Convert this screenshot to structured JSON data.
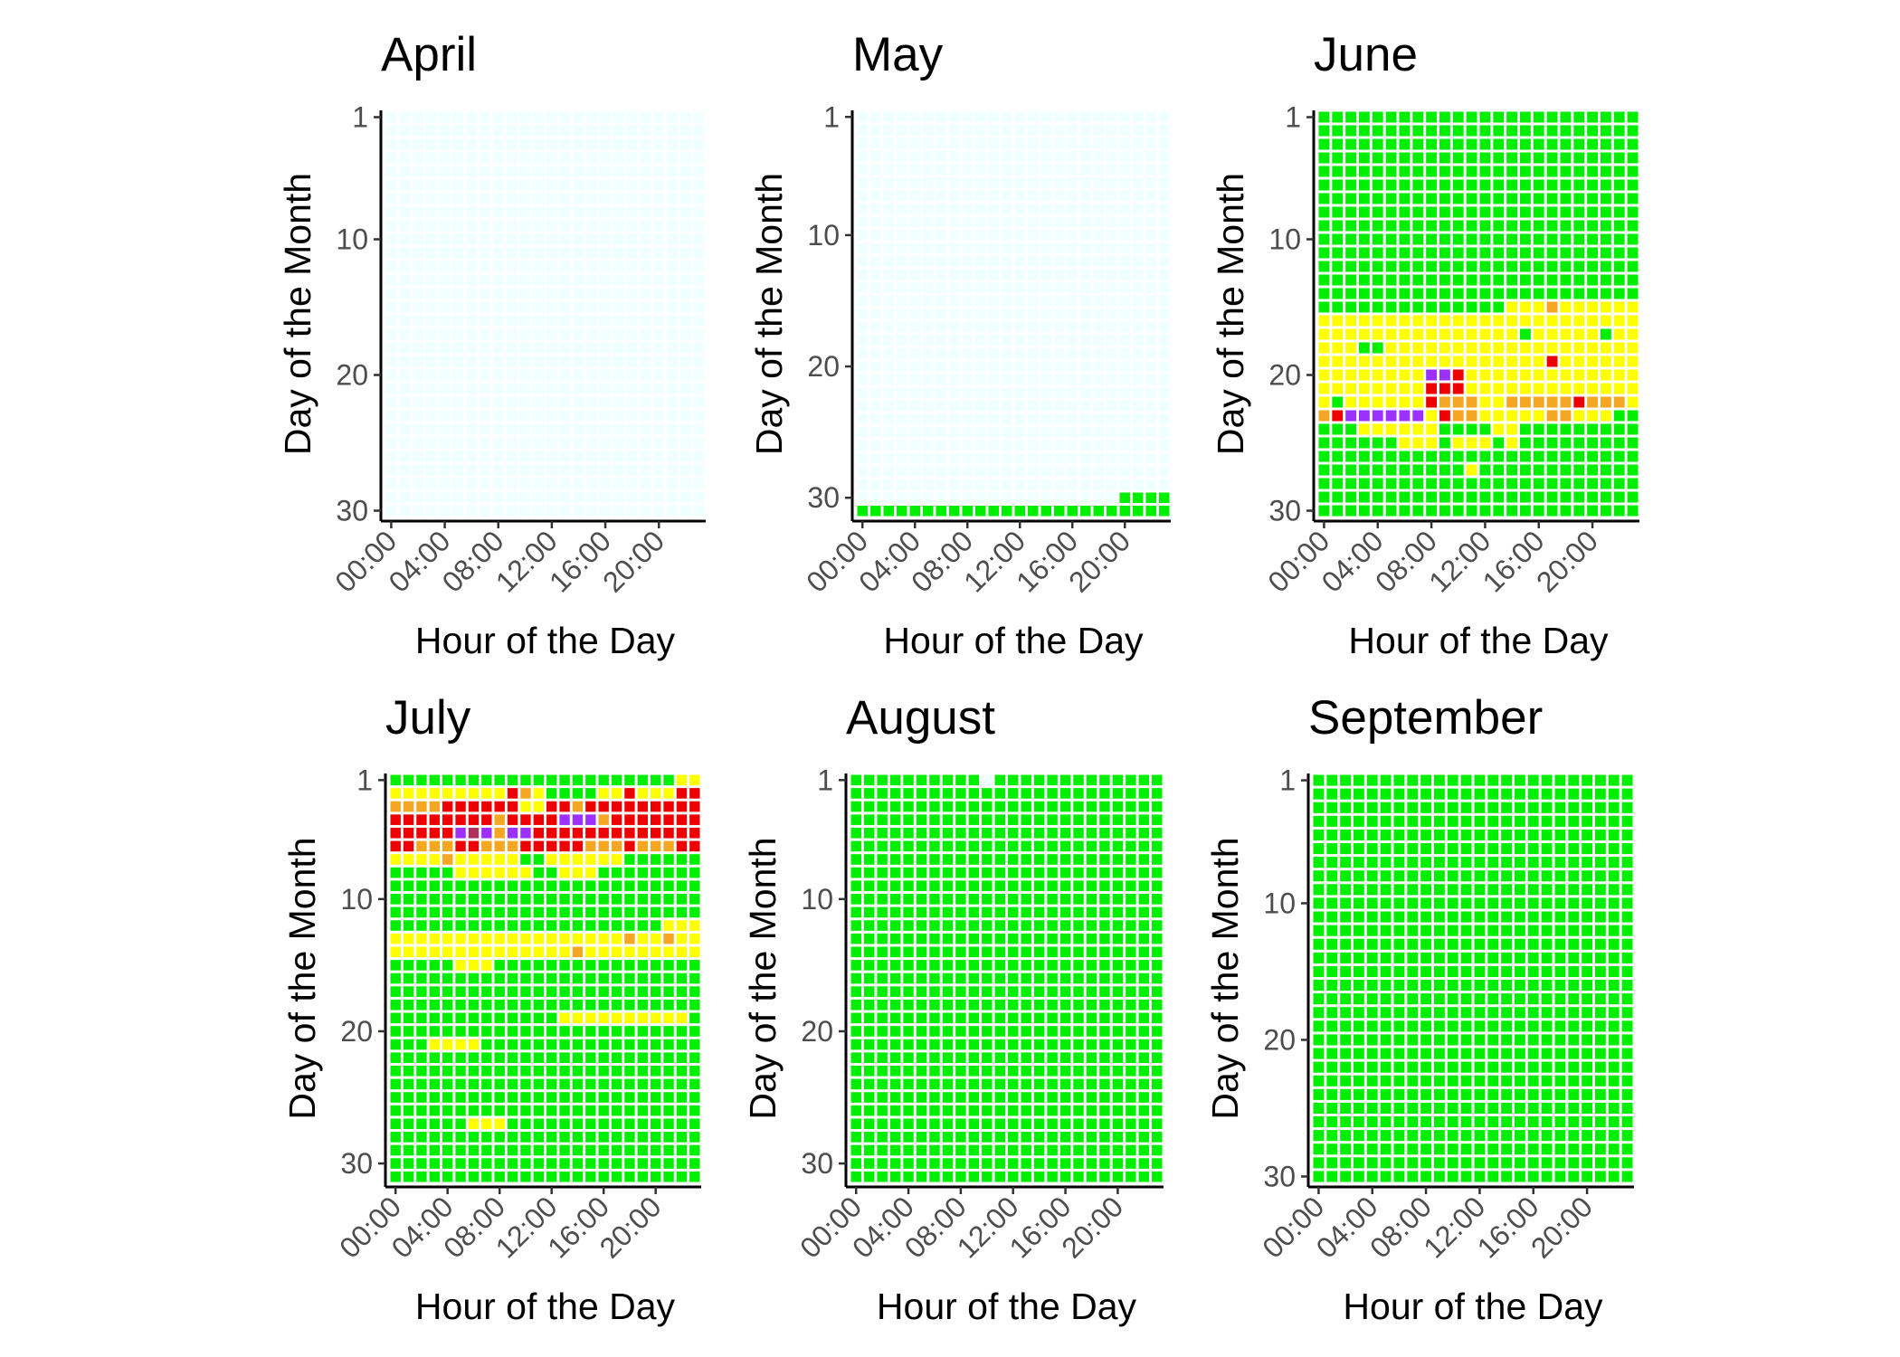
{
  "chart_data": {
    "type": "heatmap",
    "color_scale": {
      "no_data": "#f0ffff",
      "level_0": "#00ee00",
      "level_1": "#ffff00",
      "level_2": "#f5a623",
      "level_3": "#ee0000",
      "level_4": "#9b30ff",
      "level_5": "#b03060"
    },
    "panels": [
      {
        "title": "April",
        "xlabel": "Hour of the Day",
        "ylabel": "Day of the Month",
        "x_ticks": [
          "00:00",
          "04:00",
          "08:00",
          "12:00",
          "16:00",
          "20:00"
        ],
        "y_ticks": [
          "1",
          "10",
          "20",
          "30"
        ],
        "days": 30,
        "hours": 24,
        "default_level": -1,
        "regions": []
      },
      {
        "title": "May",
        "xlabel": "Hour of the Day",
        "ylabel": "Day of the Month",
        "x_ticks": [
          "00:00",
          "04:00",
          "08:00",
          "12:00",
          "16:00",
          "20:00"
        ],
        "y_ticks": [
          "1",
          "10",
          "20",
          "30"
        ],
        "days": 31,
        "hours": 24,
        "default_level": -1,
        "regions": [
          {
            "day": 30,
            "h0": 20,
            "h1": 23,
            "level": 0
          },
          {
            "day": 31,
            "h0": 0,
            "h1": 23,
            "level": 0
          }
        ]
      },
      {
        "title": "June",
        "xlabel": "Hour of the Day",
        "ylabel": "Day of the Month",
        "x_ticks": [
          "00:00",
          "04:00",
          "08:00",
          "12:00",
          "16:00",
          "20:00"
        ],
        "y_ticks": [
          "1",
          "10",
          "20",
          "30"
        ],
        "days": 30,
        "hours": 24,
        "default_level": 0,
        "regions": [
          {
            "day": 15,
            "h0": 14,
            "h1": 23,
            "level": 1
          },
          {
            "day": 15,
            "h0": 17,
            "h1": 17,
            "level": 2
          },
          {
            "day": 16,
            "h0": 0,
            "h1": 23,
            "level": 1
          },
          {
            "day": 17,
            "h0": 0,
            "h1": 23,
            "level": 1
          },
          {
            "day": 17,
            "h0": 15,
            "h1": 15,
            "level": 0
          },
          {
            "day": 17,
            "h0": 21,
            "h1": 21,
            "level": 0
          },
          {
            "day": 18,
            "h0": 0,
            "h1": 23,
            "level": 1
          },
          {
            "day": 18,
            "h0": 3,
            "h1": 3,
            "level": 0
          },
          {
            "day": 18,
            "h0": 4,
            "h1": 4,
            "level": 0
          },
          {
            "day": 19,
            "h0": 0,
            "h1": 23,
            "level": 1
          },
          {
            "day": 19,
            "h0": 17,
            "h1": 17,
            "level": 3
          },
          {
            "day": 20,
            "h0": 0,
            "h1": 23,
            "level": 1
          },
          {
            "day": 20,
            "h0": 8,
            "h1": 9,
            "level": 4
          },
          {
            "day": 20,
            "h0": 10,
            "h1": 10,
            "level": 3
          },
          {
            "day": 21,
            "h0": 0,
            "h1": 23,
            "level": 1
          },
          {
            "day": 21,
            "h0": 8,
            "h1": 8,
            "level": 3
          },
          {
            "day": 21,
            "h0": 9,
            "h1": 10,
            "level": 3
          },
          {
            "day": 22,
            "h0": 0,
            "h1": 23,
            "level": 1
          },
          {
            "day": 22,
            "h0": 1,
            "h1": 1,
            "level": 0
          },
          {
            "day": 22,
            "h0": 8,
            "h1": 8,
            "level": 3
          },
          {
            "day": 22,
            "h0": 9,
            "h1": 11,
            "level": 2
          },
          {
            "day": 22,
            "h0": 14,
            "h1": 20,
            "level": 2
          },
          {
            "day": 22,
            "h0": 19,
            "h1": 19,
            "level": 3
          },
          {
            "day": 22,
            "h0": 21,
            "h1": 22,
            "level": 2
          },
          {
            "day": 23,
            "h0": 0,
            "h1": 0,
            "level": 2
          },
          {
            "day": 23,
            "h0": 1,
            "h1": 1,
            "level": 3
          },
          {
            "day": 23,
            "h0": 2,
            "h1": 7,
            "level": 4
          },
          {
            "day": 23,
            "h0": 8,
            "h1": 8,
            "level": 1
          },
          {
            "day": 23,
            "h0": 9,
            "h1": 9,
            "level": 3
          },
          {
            "day": 23,
            "h0": 10,
            "h1": 11,
            "level": 2
          },
          {
            "day": 23,
            "h0": 12,
            "h1": 16,
            "level": 1
          },
          {
            "day": 23,
            "h0": 17,
            "h1": 18,
            "level": 2
          },
          {
            "day": 23,
            "h0": 19,
            "h1": 21,
            "level": 1
          },
          {
            "day": 24,
            "h0": 3,
            "h1": 8,
            "level": 1
          },
          {
            "day": 24,
            "h0": 13,
            "h1": 14,
            "level": 1
          },
          {
            "day": 25,
            "h0": 6,
            "h1": 8,
            "level": 1
          },
          {
            "day": 25,
            "h0": 10,
            "h1": 12,
            "level": 1
          },
          {
            "day": 25,
            "h0": 14,
            "h1": 14,
            "level": 1
          },
          {
            "day": 27,
            "h0": 11,
            "h1": 11,
            "level": 1
          }
        ]
      },
      {
        "title": "July",
        "xlabel": "Hour of the Day",
        "ylabel": "Day of the Month",
        "x_ticks": [
          "00:00",
          "04:00",
          "08:00",
          "12:00",
          "16:00",
          "20:00"
        ],
        "y_ticks": [
          "1",
          "10",
          "20",
          "30"
        ],
        "days": 31,
        "hours": 24,
        "default_level": 0,
        "regions": [
          {
            "day": 1,
            "h0": 22,
            "h1": 23,
            "level": 1
          },
          {
            "day": 2,
            "h0": 0,
            "h1": 23,
            "level": 1
          },
          {
            "day": 2,
            "h0": 9,
            "h1": 9,
            "level": 3
          },
          {
            "day": 2,
            "h0": 10,
            "h1": 10,
            "level": 2
          },
          {
            "day": 2,
            "h0": 12,
            "h1": 15,
            "level": 0
          },
          {
            "day": 2,
            "h0": 18,
            "h1": 18,
            "level": 3
          },
          {
            "day": 2,
            "h0": 22,
            "h1": 23,
            "level": 3
          },
          {
            "day": 3,
            "h0": 0,
            "h1": 3,
            "level": 2
          },
          {
            "day": 3,
            "h0": 4,
            "h1": 23,
            "level": 3
          },
          {
            "day": 3,
            "h0": 10,
            "h1": 11,
            "level": 1
          },
          {
            "day": 3,
            "h0": 14,
            "h1": 14,
            "level": 2
          },
          {
            "day": 4,
            "h0": 0,
            "h1": 23,
            "level": 3
          },
          {
            "day": 4,
            "h0": 8,
            "h1": 8,
            "level": 2
          },
          {
            "day": 4,
            "h0": 13,
            "h1": 15,
            "level": 4
          },
          {
            "day": 4,
            "h0": 16,
            "h1": 16,
            "level": 2
          },
          {
            "day": 5,
            "h0": 0,
            "h1": 23,
            "level": 3
          },
          {
            "day": 5,
            "h0": 5,
            "h1": 5,
            "level": 4
          },
          {
            "day": 5,
            "h0": 6,
            "h1": 6,
            "level": 5
          },
          {
            "day": 5,
            "h0": 7,
            "h1": 7,
            "level": 4
          },
          {
            "day": 5,
            "h0": 9,
            "h1": 9,
            "level": 4
          },
          {
            "day": 5,
            "h0": 10,
            "h1": 10,
            "level": 4
          },
          {
            "day": 5,
            "h0": 8,
            "h1": 8,
            "level": 2
          },
          {
            "day": 6,
            "h0": 0,
            "h1": 23,
            "level": 3
          },
          {
            "day": 6,
            "h0": 2,
            "h1": 4,
            "level": 2
          },
          {
            "day": 6,
            "h0": 7,
            "h1": 9,
            "level": 2
          },
          {
            "day": 6,
            "h0": 15,
            "h1": 17,
            "level": 2
          },
          {
            "day": 6,
            "h0": 19,
            "h1": 21,
            "level": 2
          },
          {
            "day": 7,
            "h0": 0,
            "h1": 23,
            "level": 1
          },
          {
            "day": 7,
            "h0": 4,
            "h1": 4,
            "level": 2
          },
          {
            "day": 7,
            "h0": 10,
            "h1": 11,
            "level": 0
          },
          {
            "day": 7,
            "h0": 18,
            "h1": 23,
            "level": 0
          },
          {
            "day": 8,
            "h0": 5,
            "h1": 15,
            "level": 1
          },
          {
            "day": 8,
            "h0": 11,
            "h1": 12,
            "level": 0
          },
          {
            "day": 12,
            "h0": 21,
            "h1": 23,
            "level": 1
          },
          {
            "day": 13,
            "h0": 0,
            "h1": 23,
            "level": 1
          },
          {
            "day": 13,
            "h0": 18,
            "h1": 18,
            "level": 2
          },
          {
            "day": 13,
            "h0": 21,
            "h1": 21,
            "level": 2
          },
          {
            "day": 14,
            "h0": 0,
            "h1": 23,
            "level": 1
          },
          {
            "day": 14,
            "h0": 14,
            "h1": 14,
            "level": 2
          },
          {
            "day": 15,
            "h0": 5,
            "h1": 7,
            "level": 1
          },
          {
            "day": 19,
            "h0": 13,
            "h1": 22,
            "level": 1
          },
          {
            "day": 21,
            "h0": 3,
            "h1": 6,
            "level": 1
          },
          {
            "day": 27,
            "h0": 6,
            "h1": 8,
            "level": 1
          }
        ]
      },
      {
        "title": "August",
        "xlabel": "Hour of the Day",
        "ylabel": "Day of the Month",
        "x_ticks": [
          "00:00",
          "04:00",
          "08:00",
          "12:00",
          "16:00",
          "20:00"
        ],
        "y_ticks": [
          "1",
          "10",
          "20",
          "30"
        ],
        "days": 31,
        "hours": 24,
        "default_level": 0,
        "regions": [
          {
            "day": 1,
            "h0": 10,
            "h1": 10,
            "level": -1
          }
        ]
      },
      {
        "title": "September",
        "xlabel": "Hour of the Day",
        "ylabel": "Day of the Month",
        "x_ticks": [
          "00:00",
          "04:00",
          "08:00",
          "12:00",
          "16:00",
          "20:00"
        ],
        "y_ticks": [
          "1",
          "10",
          "20",
          "30"
        ],
        "days": 30,
        "hours": 24,
        "default_level": 0,
        "regions": []
      }
    ]
  }
}
